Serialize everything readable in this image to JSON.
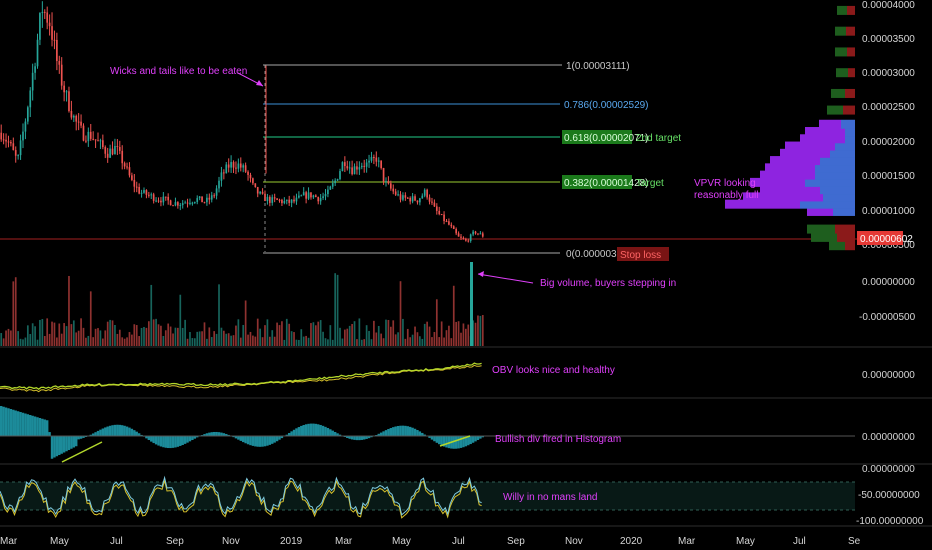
{
  "chart_data": {
    "type": "candlestick",
    "symbol_scale": "price in BTC",
    "price_axis": {
      "ticks": [
        "0.00004000",
        "0.00003500",
        "0.00003000",
        "0.00002500",
        "0.00002000",
        "0.00001500",
        "0.00001000",
        "0.00000500"
      ],
      "tick_values": [
        4e-05,
        3.5e-05,
        3e-05,
        2.5e-05,
        2e-05,
        1.5e-05,
        1e-05,
        5e-06
      ],
      "ylim": [
        3.8e-06,
        4.05e-05
      ],
      "last_price_label": "0.00000602",
      "last_price": 6.02e-06
    },
    "volume_axis": {
      "ticks": [
        "0.00000000",
        "-0.00000500"
      ]
    },
    "obv_axis": {
      "ticks": [
        "0.00000000"
      ]
    },
    "macd_axis": {
      "ticks": [
        "0.00000000"
      ]
    },
    "willr_axis": {
      "ticks": [
        "0.00000000",
        "-50.00000000",
        "-100.00000000"
      ],
      "ylim": [
        -100,
        0
      ]
    },
    "x_axis": {
      "ticks": [
        "Mar",
        "May",
        "Jul",
        "Sep",
        "Nov",
        "2019",
        "Mar",
        "May",
        "Jul",
        "Sep",
        "Nov",
        "2020",
        "Mar",
        "May",
        "Jul",
        "Se"
      ]
    },
    "price_series_approx": [
      2.14e-05,
      1.98e-05,
      1.72e-05,
      2.35e-05,
      3.1e-05,
      3.95e-05,
      3.72e-05,
      3.05e-05,
      2.65e-05,
      2.32e-05,
      2.12e-05,
      2.1e-05,
      1.98e-05,
      1.85e-05,
      1.92e-05,
      1.7e-05,
      1.43e-05,
      1.28e-05,
      1.24e-05,
      1.19e-05,
      1.17e-05,
      1.13e-05,
      1.12e-05,
      1.16e-05,
      1.18e-05,
      1.14e-05,
      1.22e-05,
      1.52e-05,
      1.68e-05,
      1.68e-05,
      1.58e-05,
      1.32e-05,
      1.21e-05,
      1.16e-05,
      1.16e-05,
      1.13e-05,
      1.15e-05,
      1.23e-05,
      1.24e-05,
      1.19e-05,
      1.26e-05,
      1.46e-05,
      1.75e-05,
      1.61e-05,
      1.69e-05,
      1.68e-05,
      1.78e-05,
      1.42e-05,
      1.29e-05,
      1.19e-05,
      1.19e-05,
      1.17e-05,
      1.29e-05,
      1.05e-05,
      9.1e-06,
      7.9e-06,
      6.3e-06,
      5.7e-06,
      7.1e-06,
      6.5e-06
    ],
    "fibonacci": [
      {
        "level": "1(0.00003111)",
        "price": 3.111e-05,
        "color": "#a8a8a8"
      },
      {
        "level": "0.786(0.00002529)",
        "price": 2.529e-05,
        "color": "#3d8fd6"
      },
      {
        "level": "0.618(0.00002071)",
        "price": 2.071e-05,
        "color": "#22cc88",
        "note": "2nd target"
      },
      {
        "level": "0.382(0.00001428)",
        "price": 1.428e-05,
        "color": "#9acd32",
        "note": "Target"
      },
      {
        "level": "0(0.00000388)",
        "price": 3.88e-06,
        "color": "#a8a8a8",
        "note": "Stop loss"
      }
    ],
    "annotations": [
      "Wicks and tails like to be eaten",
      "VPVR looking reasonably full",
      "Big volume, buyers stepping in",
      "OBV looks nice and healthy",
      "Bullish div fired in Histogram",
      "Willy in no mans land"
    ],
    "vpvr_bars": [
      {
        "price": 9.95e-06,
        "up": 22,
        "down": 26
      },
      {
        "price": 1.1e-05,
        "up": 55,
        "down": 75
      },
      {
        "price": 1.205e-05,
        "up": 32,
        "down": 80
      },
      {
        "price": 1.31e-05,
        "up": 35,
        "down": 60
      },
      {
        "price": 1.415e-05,
        "up": 50,
        "down": 55
      },
      {
        "price": 1.52e-05,
        "up": 40,
        "down": 55
      },
      {
        "price": 1.625e-05,
        "up": 40,
        "down": 50
      },
      {
        "price": 1.73e-05,
        "up": 35,
        "down": 50
      },
      {
        "price": 1.835e-05,
        "up": 25,
        "down": 50
      },
      {
        "price": 1.94e-05,
        "up": 20,
        "down": 50
      },
      {
        "price": 2.045e-05,
        "up": 10,
        "down": 45
      },
      {
        "price": 2.15e-05,
        "up": 10,
        "down": 40
      },
      {
        "price": 2.255e-05,
        "up": 14,
        "down": 22
      }
    ],
    "vpvr_dark_bars": [
      {
        "price": 5e-06,
        "up": 10,
        "down": 16
      },
      {
        "price": 6.2e-06,
        "up": 18,
        "down": 26
      },
      {
        "price": 7.4e-06,
        "up": 20,
        "down": 28
      },
      {
        "price": 2.46e-05,
        "up": 12,
        "down": 16
      },
      {
        "price": 2.7e-05,
        "up": 10,
        "down": 14
      },
      {
        "price": 3e-05,
        "up": 7,
        "down": 12
      },
      {
        "price": 3.3e-05,
        "up": 8,
        "down": 12
      },
      {
        "price": 3.6e-05,
        "up": 9,
        "down": 11
      },
      {
        "price": 3.9e-05,
        "up": 8,
        "down": 10
      }
    ],
    "colors": {
      "background": "#000000",
      "up": "#26a69a",
      "down": "#ef5350",
      "annotation": "#e040fb",
      "target_box": "#1b7a1b",
      "stop_box": "#b71c1c",
      "last_price_box": "#e53935",
      "vpvr_up": "#3f6bd1",
      "vpvr_down": "#8e24e0",
      "macd_hist": "#21a3b5",
      "obv_line": "#b2d62b",
      "willr_line": "#7ecbe0"
    }
  }
}
